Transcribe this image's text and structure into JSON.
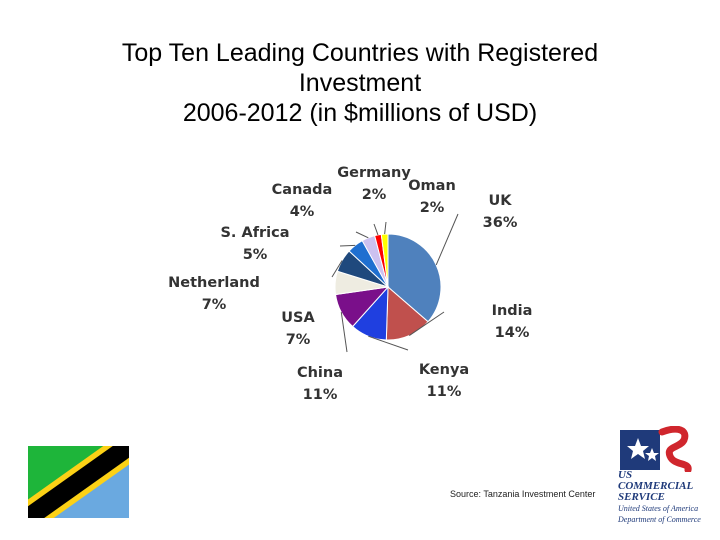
{
  "title_lines": [
    "Top Ten Leading Countries with Registered",
    "Investment",
    "2006-2012 (in $millions of USD)"
  ],
  "source": "Source: Tanzania Investment Center",
  "logo": {
    "line1": "US",
    "line2": "COMMERCIAL",
    "line3": "SERVICE",
    "line4": "United States of America",
    "line5": "Department of Commerce"
  },
  "chart_data": {
    "type": "pie",
    "title": "Top Ten Leading Countries with Registered Investment 2006-2012 (in $millions of USD)",
    "slices": [
      {
        "name": "UK",
        "value": 36,
        "label": "36%",
        "color": "#4f81bd"
      },
      {
        "name": "India",
        "value": 14,
        "label": "14%",
        "color": "#c0504d"
      },
      {
        "name": "Kenya",
        "value": 11,
        "label": "11%",
        "color": "#1f3fe0"
      },
      {
        "name": "China",
        "value": 11,
        "label": "11%",
        "color": "#7a0f8a"
      },
      {
        "name": "USA",
        "value": 7,
        "label": "7%",
        "color": "#eeece1"
      },
      {
        "name": "Netherland",
        "value": 7,
        "label": "7%",
        "color": "#1f497d"
      },
      {
        "name": "S. Africa",
        "value": 5,
        "label": "5%",
        "color": "#1f6fd0"
      },
      {
        "name": "Canada",
        "value": 4,
        "label": "4%",
        "color": "#ccc1f0"
      },
      {
        "name": "Germany",
        "value": 2,
        "label": "2%",
        "color": "#ff0000"
      },
      {
        "name": "Oman",
        "value": 2,
        "label": "2%",
        "color": "#ffff00"
      }
    ]
  }
}
